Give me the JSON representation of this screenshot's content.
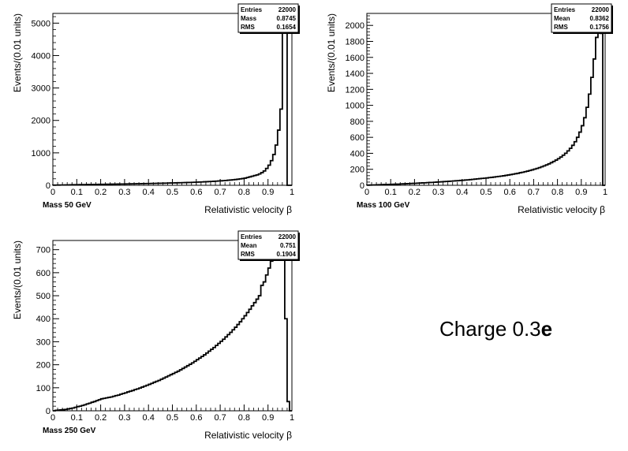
{
  "charge_label": {
    "text": "Charge 0.3",
    "symbol": "e"
  },
  "chart_data": [
    {
      "type": "bar",
      "name": "Mass 50 GeV",
      "xlabel": "Relativistic velocity β",
      "ylabel": "Events/(0.01 units)",
      "xlim": [
        0,
        1
      ],
      "ylim": [
        0,
        5300
      ],
      "x_ticks": [
        "0",
        "0.1",
        "0.2",
        "0.3",
        "0.4",
        "0.5",
        "0.6",
        "0.7",
        "0.8",
        "0.9",
        "1"
      ],
      "y_ticks": [
        "0",
        "1000",
        "2000",
        "3000",
        "4000",
        "5000"
      ],
      "stats": [
        [
          "Entries",
          "22000"
        ],
        [
          "Mass",
          "0.8745"
        ],
        [
          "RMS",
          "0.1654"
        ]
      ],
      "bin_width": 0.01,
      "values": [
        5,
        6,
        8,
        9,
        10,
        12,
        13,
        15,
        17,
        18,
        19,
        20,
        21,
        22,
        23,
        24,
        25,
        27,
        28,
        29,
        30,
        31,
        32,
        33,
        35,
        36,
        37,
        38,
        39,
        40,
        41,
        43,
        44,
        45,
        46,
        48,
        49,
        51,
        52,
        54,
        55,
        57,
        58,
        60,
        62,
        63,
        65,
        67,
        69,
        71,
        73,
        75,
        77,
        79,
        82,
        84,
        87,
        89,
        92,
        95,
        98,
        101,
        104,
        108,
        111,
        115,
        119,
        123,
        128,
        133,
        138,
        143,
        149,
        156,
        163,
        170,
        178,
        187,
        197,
        208,
        220,
        240,
        260,
        280,
        300,
        320,
        350,
        390,
        440,
        520,
        620,
        760,
        950,
        1240,
        1700,
        2350,
        4950,
        5300,
        0,
        0
      ]
    },
    {
      "type": "bar",
      "name": "Mass 100 GeV",
      "xlabel": "Relativistic velocity β",
      "ylabel": "Events/(0.01 units)",
      "xlim": [
        0,
        1
      ],
      "ylim": [
        0,
        2150
      ],
      "x_ticks": [
        "0",
        "0.1",
        "0.2",
        "0.3",
        "0.4",
        "0.5",
        "0.6",
        "0.7",
        "0.8",
        "0.9",
        "1"
      ],
      "y_ticks": [
        "0",
        "200",
        "400",
        "600",
        "800",
        "1000",
        "1200",
        "1400",
        "1600",
        "1800",
        "2000"
      ],
      "stats": [
        [
          "Entries",
          "22000"
        ],
        [
          "Mean",
          "0.8362"
        ],
        [
          "RMS",
          "0.1756"
        ]
      ],
      "bin_width": 0.01,
      "values": [
        2,
        3,
        4,
        5,
        6,
        7,
        8,
        9,
        10,
        11,
        12,
        13,
        14,
        15,
        17,
        18,
        19,
        21,
        22,
        24,
        25,
        27,
        28,
        30,
        31,
        33,
        35,
        36,
        38,
        40,
        42,
        44,
        46,
        48,
        50,
        52,
        54,
        56,
        58,
        61,
        63,
        66,
        68,
        71,
        74,
        77,
        80,
        83,
        86,
        89,
        92,
        96,
        99,
        103,
        107,
        111,
        115,
        119,
        124,
        129,
        134,
        139,
        145,
        150,
        157,
        163,
        170,
        177,
        185,
        193,
        202,
        211,
        221,
        232,
        243,
        255,
        268,
        283,
        298,
        315,
        333,
        353,
        376,
        401,
        430,
        462,
        500,
        545,
        600,
        665,
        745,
        845,
        975,
        1140,
        1350,
        1580,
        1850,
        2150,
        1900,
        0
      ]
    },
    {
      "type": "bar",
      "name": "Mass 250 GeV",
      "xlabel": "Relativistic velocity β",
      "ylabel": "Events/(0.01 units)",
      "xlim": [
        0,
        1
      ],
      "ylim": [
        0,
        740
      ],
      "x_ticks": [
        "0",
        "0.1",
        "0.2",
        "0.3",
        "0.4",
        "0.5",
        "0.6",
        "0.7",
        "0.8",
        "0.9",
        "1"
      ],
      "y_ticks": [
        "0",
        "100",
        "200",
        "300",
        "400",
        "500",
        "600",
        "700"
      ],
      "stats": [
        [
          "Entries",
          "22000"
        ],
        [
          "Mean",
          "0.751"
        ],
        [
          "RMS",
          "0.1904"
        ]
      ],
      "bin_width": 0.01,
      "values": [
        0,
        2,
        3,
        4,
        5,
        6,
        8,
        10,
        12,
        15,
        18,
        20,
        23,
        26,
        30,
        33,
        37,
        40,
        44,
        48,
        52,
        54,
        56,
        58,
        60,
        63,
        66,
        68,
        72,
        75,
        78,
        82,
        85,
        88,
        92,
        95,
        99,
        103,
        107,
        111,
        115,
        119,
        124,
        128,
        132,
        137,
        142,
        147,
        152,
        157,
        162,
        167,
        172,
        178,
        184,
        190,
        196,
        202,
        208,
        215,
        222,
        229,
        236,
        243,
        251,
        259,
        267,
        275,
        284,
        293,
        302,
        311,
        321,
        331,
        341,
        352,
        363,
        375,
        387,
        400,
        413,
        427,
        441,
        456,
        470,
        485,
        500,
        545,
        560,
        590,
        620,
        650,
        670,
        690,
        710,
        730,
        740,
        400,
        40,
        0
      ]
    }
  ]
}
